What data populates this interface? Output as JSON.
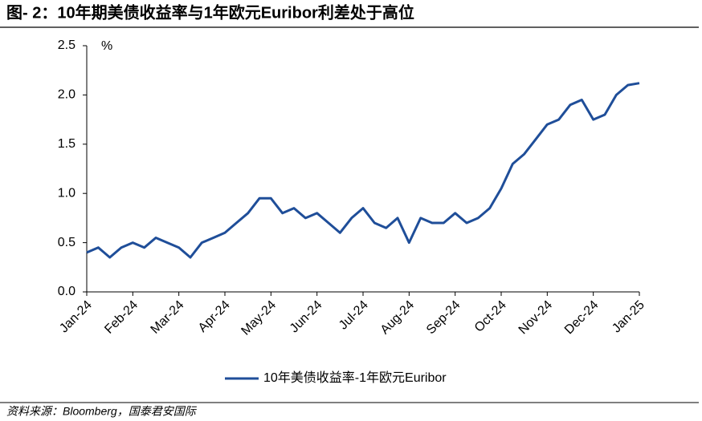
{
  "chart_data": {
    "type": "line",
    "title": "图- 2：10年期美债收益率与1年欧元Euribor利差处于高位",
    "y_unit": "%",
    "source": "资料来源：Bloomberg，国泰君安国际",
    "categories": [
      "Jan-24",
      null,
      null,
      null,
      "Feb-24",
      null,
      null,
      null,
      "Mar-24",
      null,
      null,
      null,
      "Apr-24",
      null,
      null,
      null,
      "May-24",
      null,
      null,
      null,
      "Jun-24",
      null,
      null,
      null,
      "Jul-24",
      null,
      null,
      null,
      "Aug-24",
      null,
      null,
      null,
      "Sep-24",
      null,
      null,
      null,
      "Oct-24",
      null,
      null,
      null,
      "Nov-24",
      null,
      null,
      null,
      "Dec-24",
      null,
      null,
      null,
      "Jan-25"
    ],
    "series": [
      {
        "name": "10年美债收益率-1年欧元Euribor",
        "color": "#1f4e99",
        "values": [
          0.4,
          0.45,
          0.35,
          0.45,
          0.5,
          0.45,
          0.55,
          0.5,
          0.45,
          0.35,
          0.5,
          0.55,
          0.6,
          0.7,
          0.8,
          0.95,
          0.95,
          0.8,
          0.85,
          0.75,
          0.8,
          0.7,
          0.6,
          0.75,
          0.85,
          0.7,
          0.65,
          0.75,
          0.5,
          0.75,
          0.7,
          0.7,
          0.8,
          0.7,
          0.75,
          0.85,
          1.05,
          1.3,
          1.4,
          1.55,
          1.7,
          1.75,
          1.9,
          1.95,
          1.75,
          1.8,
          2.0,
          2.1,
          2.12
        ]
      }
    ],
    "ylim": [
      0,
      2.5
    ],
    "yticks": [
      {
        "value": 0,
        "label": "0.0"
      },
      0.5,
      {
        "value": 1,
        "label": "1.0"
      },
      1.5,
      {
        "value": 2,
        "label": "2.0"
      },
      2.5
    ],
    "grid": false
  }
}
